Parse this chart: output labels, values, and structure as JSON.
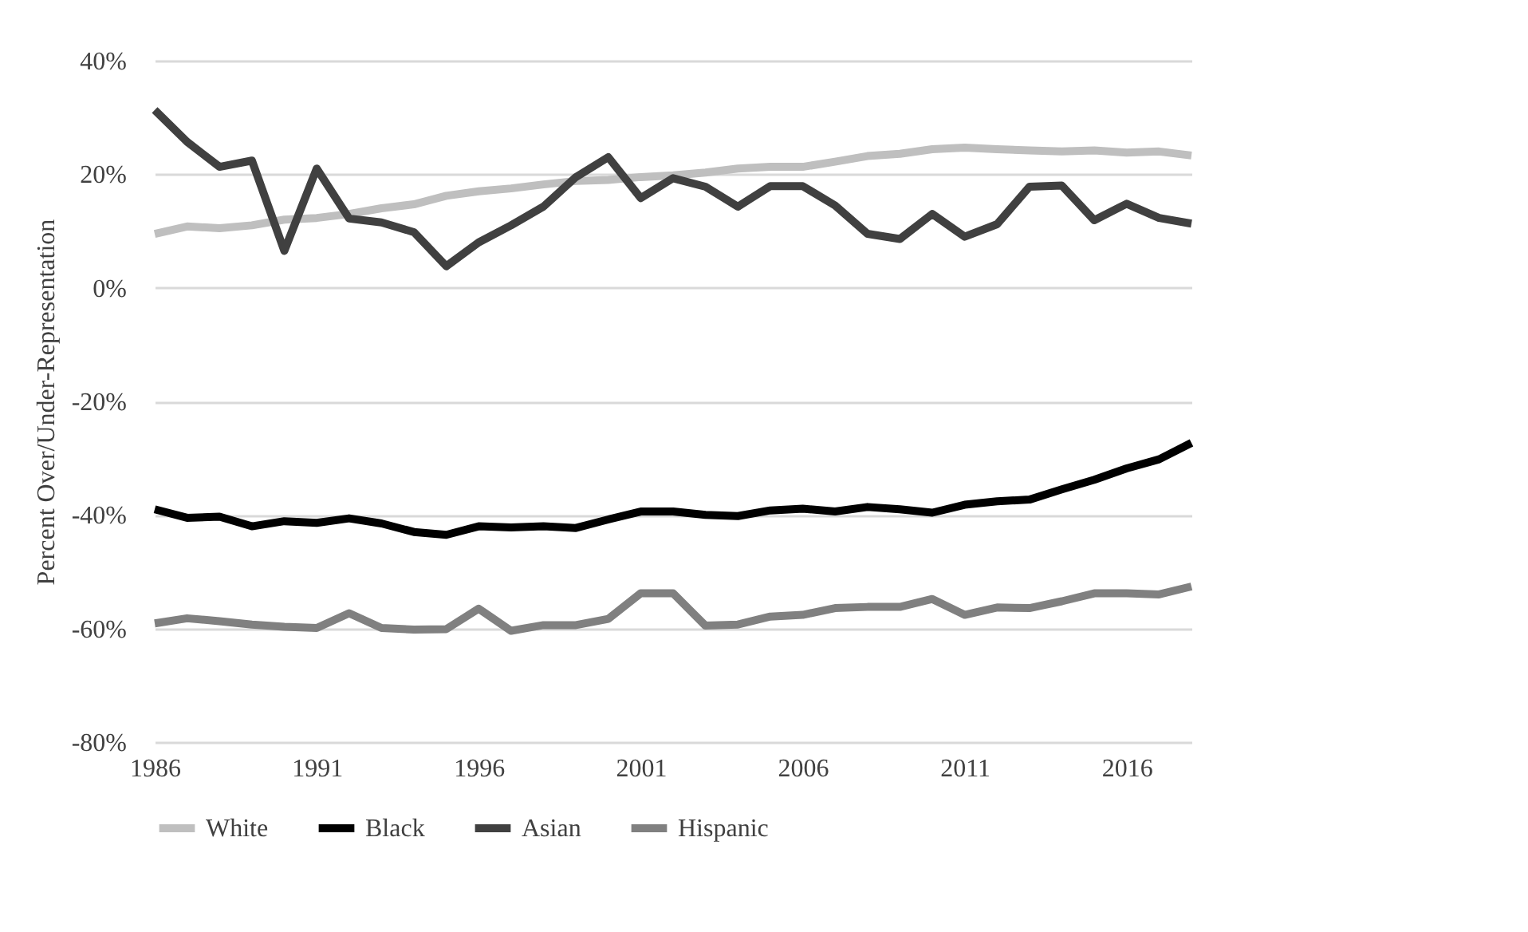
{
  "chart_data": {
    "type": "line",
    "ylabel": "Percent Over/Under-Representation",
    "x": [
      1986,
      1987,
      1988,
      1989,
      1990,
      1991,
      1992,
      1993,
      1994,
      1995,
      1996,
      1997,
      1998,
      1999,
      2000,
      2001,
      2002,
      2003,
      2004,
      2005,
      2006,
      2007,
      2008,
      2009,
      2010,
      2011,
      2012,
      2013,
      2014,
      2015,
      2016,
      2017,
      2018
    ],
    "xlim": [
      1986,
      2018
    ],
    "xticks": [
      1986,
      1991,
      1996,
      2001,
      2006,
      2011,
      2016
    ],
    "ylim": [
      -80,
      40
    ],
    "yticks": [
      {
        "value": -80,
        "label": "-80%"
      },
      {
        "value": -60,
        "label": "-60%"
      },
      {
        "value": -40,
        "label": "-40%"
      },
      {
        "value": -20,
        "label": "-20%"
      },
      {
        "value": 0,
        "label": "0%"
      },
      {
        "value": 20,
        "label": "20%"
      },
      {
        "value": 40,
        "label": "40%"
      }
    ],
    "grid": "y",
    "legend": "bottom",
    "line_style": "solid",
    "marker": "none",
    "series": [
      {
        "name": "White",
        "color": "#bfbfbf",
        "values": [
          9.5,
          10.8,
          10.5,
          11,
          12,
          12.3,
          13,
          14,
          14.7,
          16.2,
          17,
          17.5,
          18.2,
          18.8,
          19,
          19.5,
          19.8,
          20.3,
          21,
          21.3,
          21.3,
          22.2,
          23.2,
          23.6,
          24.4,
          24.7,
          24.4,
          24.2,
          24,
          24.2,
          23.8,
          24,
          23.3
        ]
      },
      {
        "name": "Black",
        "color": "#000000",
        "values": [
          -39,
          -40.5,
          -40.3,
          -42,
          -41.1,
          -41.4,
          -40.6,
          -41.5,
          -43,
          -43.5,
          -42,
          -42.2,
          -42,
          -42.3,
          -40.8,
          -39.4,
          -39.4,
          -40,
          -40.2,
          -39.2,
          -38.9,
          -39.4,
          -38.6,
          -39,
          -39.6,
          -38.2,
          -37.6,
          -37.3,
          -35.5,
          -33.8,
          -31.8,
          -30.2,
          -27.3
        ]
      },
      {
        "name": "Asian",
        "color": "#404040",
        "values": [
          31.3,
          25.7,
          21.3,
          22.4,
          6.5,
          21,
          12.2,
          11.5,
          9.8,
          3.8,
          8,
          11,
          14.3,
          19.5,
          23,
          15.8,
          19.3,
          17.8,
          14.3,
          17.9,
          17.9,
          14.5,
          9.5,
          8.6,
          13,
          9,
          11.2,
          17.8,
          18,
          11.9,
          14.8,
          12.3,
          11.3
        ]
      },
      {
        "name": "Hispanic",
        "color": "#808080",
        "values": [
          -59.1,
          -58.2,
          -58.7,
          -59.3,
          -59.7,
          -59.9,
          -57.3,
          -59.9,
          -60.2,
          -60.1,
          -56.5,
          -60.4,
          -59.4,
          -59.4,
          -58.3,
          -53.8,
          -53.8,
          -59.5,
          -59.3,
          -57.9,
          -57.6,
          -56.4,
          -56.2,
          -56.2,
          -54.8,
          -57.6,
          -56.3,
          -56.4,
          -55.2,
          -53.8,
          -53.8,
          -54,
          -52.6
        ]
      }
    ]
  }
}
